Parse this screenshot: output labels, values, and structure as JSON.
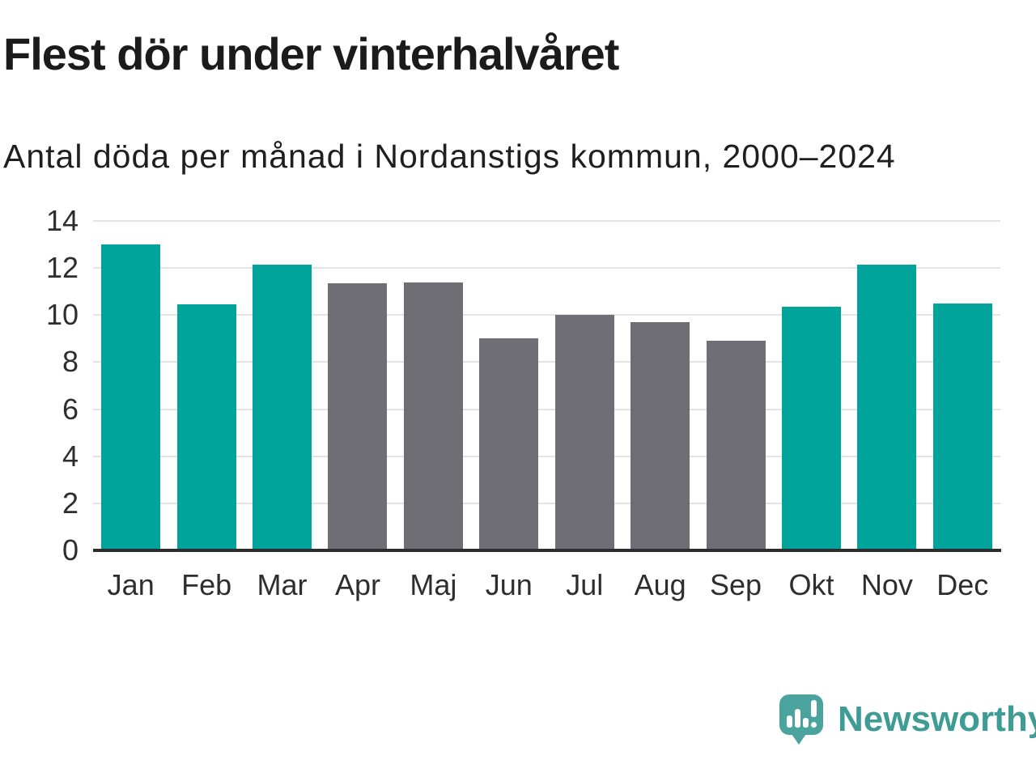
{
  "header": {
    "title": "Flest dör under vinterhalvåret",
    "subtitle": "Antal döda per månad i Nordanstigs kommun, 2000–2024"
  },
  "chart_data": {
    "type": "bar",
    "title": "Flest dör under vinterhalvåret",
    "subtitle": "Antal döda per månad i Nordanstigs kommun, 2000–2024",
    "categories": [
      "Jan",
      "Feb",
      "Mar",
      "Apr",
      "Maj",
      "Jun",
      "Jul",
      "Aug",
      "Sep",
      "Okt",
      "Nov",
      "Dec"
    ],
    "values": [
      13.0,
      10.45,
      12.15,
      11.35,
      11.4,
      9.0,
      10.0,
      9.7,
      8.9,
      10.35,
      12.15,
      10.5
    ],
    "bar_color_keys": [
      "highlight",
      "highlight",
      "highlight",
      "muted",
      "muted",
      "muted",
      "muted",
      "muted",
      "muted",
      "highlight",
      "highlight",
      "highlight"
    ],
    "colors": {
      "highlight": "#00A49B",
      "muted": "#6E6E74"
    },
    "xlabel": "",
    "ylabel": "",
    "ylim": [
      0,
      14
    ],
    "yticks": [
      0,
      2,
      4,
      6,
      8,
      10,
      12,
      14
    ],
    "grid": true,
    "legend_position": "none",
    "axis_colors": {
      "gridline": "#e3e3e3",
      "baseline": "#2d2d2d",
      "tick_text": "#2e2e2e"
    }
  },
  "footer": {
    "brand": "Newsworthy",
    "logo_icon": "newsworthy-speech-bubble-bar-chart-icon",
    "brand_color": "#3E9C95",
    "logo_color": "#4BA39E"
  }
}
